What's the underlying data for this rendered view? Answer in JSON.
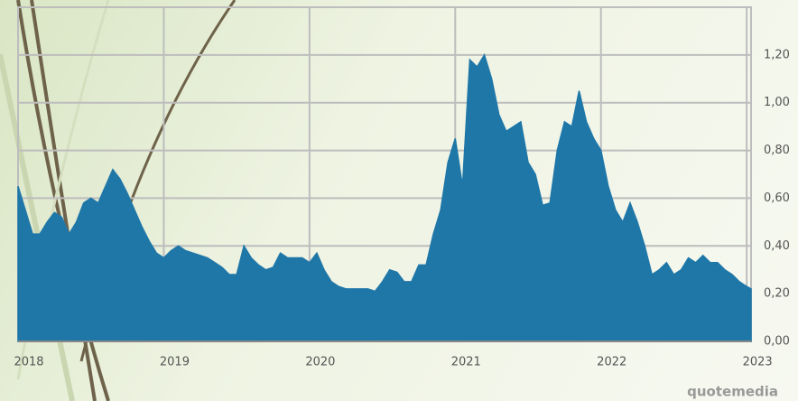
{
  "chart_data": {
    "type": "area",
    "color": "#1f77a8",
    "grid": true,
    "xlim": [
      2018,
      2023.03
    ],
    "ylim": [
      0,
      1.4
    ],
    "xticks": [
      2018,
      2019,
      2020,
      2021,
      2022,
      2023
    ],
    "yticks": [
      {
        "value": 0,
        "label": "0,00"
      },
      {
        "value": 0.2,
        "label": "0,20"
      },
      {
        "value": 0.4,
        "label": "0,40"
      },
      {
        "value": 0.6,
        "label": "0,60"
      },
      {
        "value": 0.8,
        "label": "0,80"
      },
      {
        "value": 1.0,
        "label": "1,00"
      },
      {
        "value": 1.2,
        "label": "1,20"
      }
    ],
    "x": [
      2018.0,
      2018.05,
      2018.1,
      2018.15,
      2018.2,
      2018.25,
      2018.3,
      2018.35,
      2018.4,
      2018.45,
      2018.5,
      2018.55,
      2018.6,
      2018.65,
      2018.7,
      2018.75,
      2018.8,
      2018.85,
      2018.9,
      2018.95,
      2019.0,
      2019.05,
      2019.1,
      2019.15,
      2019.2,
      2019.25,
      2019.3,
      2019.35,
      2019.4,
      2019.45,
      2019.5,
      2019.55,
      2019.6,
      2019.65,
      2019.7,
      2019.75,
      2019.8,
      2019.85,
      2019.9,
      2019.95,
      2020.0,
      2020.05,
      2020.1,
      2020.15,
      2020.2,
      2020.25,
      2020.3,
      2020.35,
      2020.4,
      2020.45,
      2020.5,
      2020.55,
      2020.6,
      2020.65,
      2020.7,
      2020.75,
      2020.8,
      2020.85,
      2020.9,
      2020.95,
      2021.0,
      2021.05,
      2021.1,
      2021.15,
      2021.2,
      2021.25,
      2021.3,
      2021.35,
      2021.4,
      2021.45,
      2021.5,
      2021.55,
      2021.6,
      2021.65,
      2021.7,
      2021.75,
      2021.8,
      2021.85,
      2021.9,
      2021.95,
      2022.0,
      2022.05,
      2022.1,
      2022.15,
      2022.2,
      2022.25,
      2022.3,
      2022.35,
      2022.4,
      2022.45,
      2022.5,
      2022.55,
      2022.6,
      2022.65,
      2022.7,
      2022.75,
      2022.8,
      2022.85,
      2022.9,
      2022.95,
      2023.0,
      2023.03
    ],
    "values": [
      0.65,
      0.55,
      0.45,
      0.45,
      0.5,
      0.54,
      0.52,
      0.45,
      0.5,
      0.58,
      0.6,
      0.58,
      0.65,
      0.72,
      0.68,
      0.62,
      0.55,
      0.48,
      0.42,
      0.37,
      0.35,
      0.38,
      0.4,
      0.38,
      0.37,
      0.36,
      0.35,
      0.33,
      0.31,
      0.28,
      0.28,
      0.4,
      0.35,
      0.32,
      0.3,
      0.31,
      0.37,
      0.35,
      0.35,
      0.35,
      0.33,
      0.37,
      0.3,
      0.25,
      0.23,
      0.22,
      0.22,
      0.22,
      0.22,
      0.21,
      0.25,
      0.3,
      0.29,
      0.25,
      0.25,
      0.32,
      0.32,
      0.45,
      0.55,
      0.75,
      0.85,
      0.65,
      1.18,
      1.15,
      1.2,
      1.1,
      0.95,
      0.88,
      0.9,
      0.92,
      0.75,
      0.7,
      0.57,
      0.58,
      0.8,
      0.92,
      0.9,
      1.05,
      0.92,
      0.85,
      0.8,
      0.65,
      0.55,
      0.5,
      0.58,
      0.5,
      0.4,
      0.28,
      0.3,
      0.33,
      0.28,
      0.3,
      0.35,
      0.33,
      0.36,
      0.33,
      0.33,
      0.3,
      0.28,
      0.25,
      0.23,
      0.22
    ],
    "watermark": "quotemedia"
  }
}
